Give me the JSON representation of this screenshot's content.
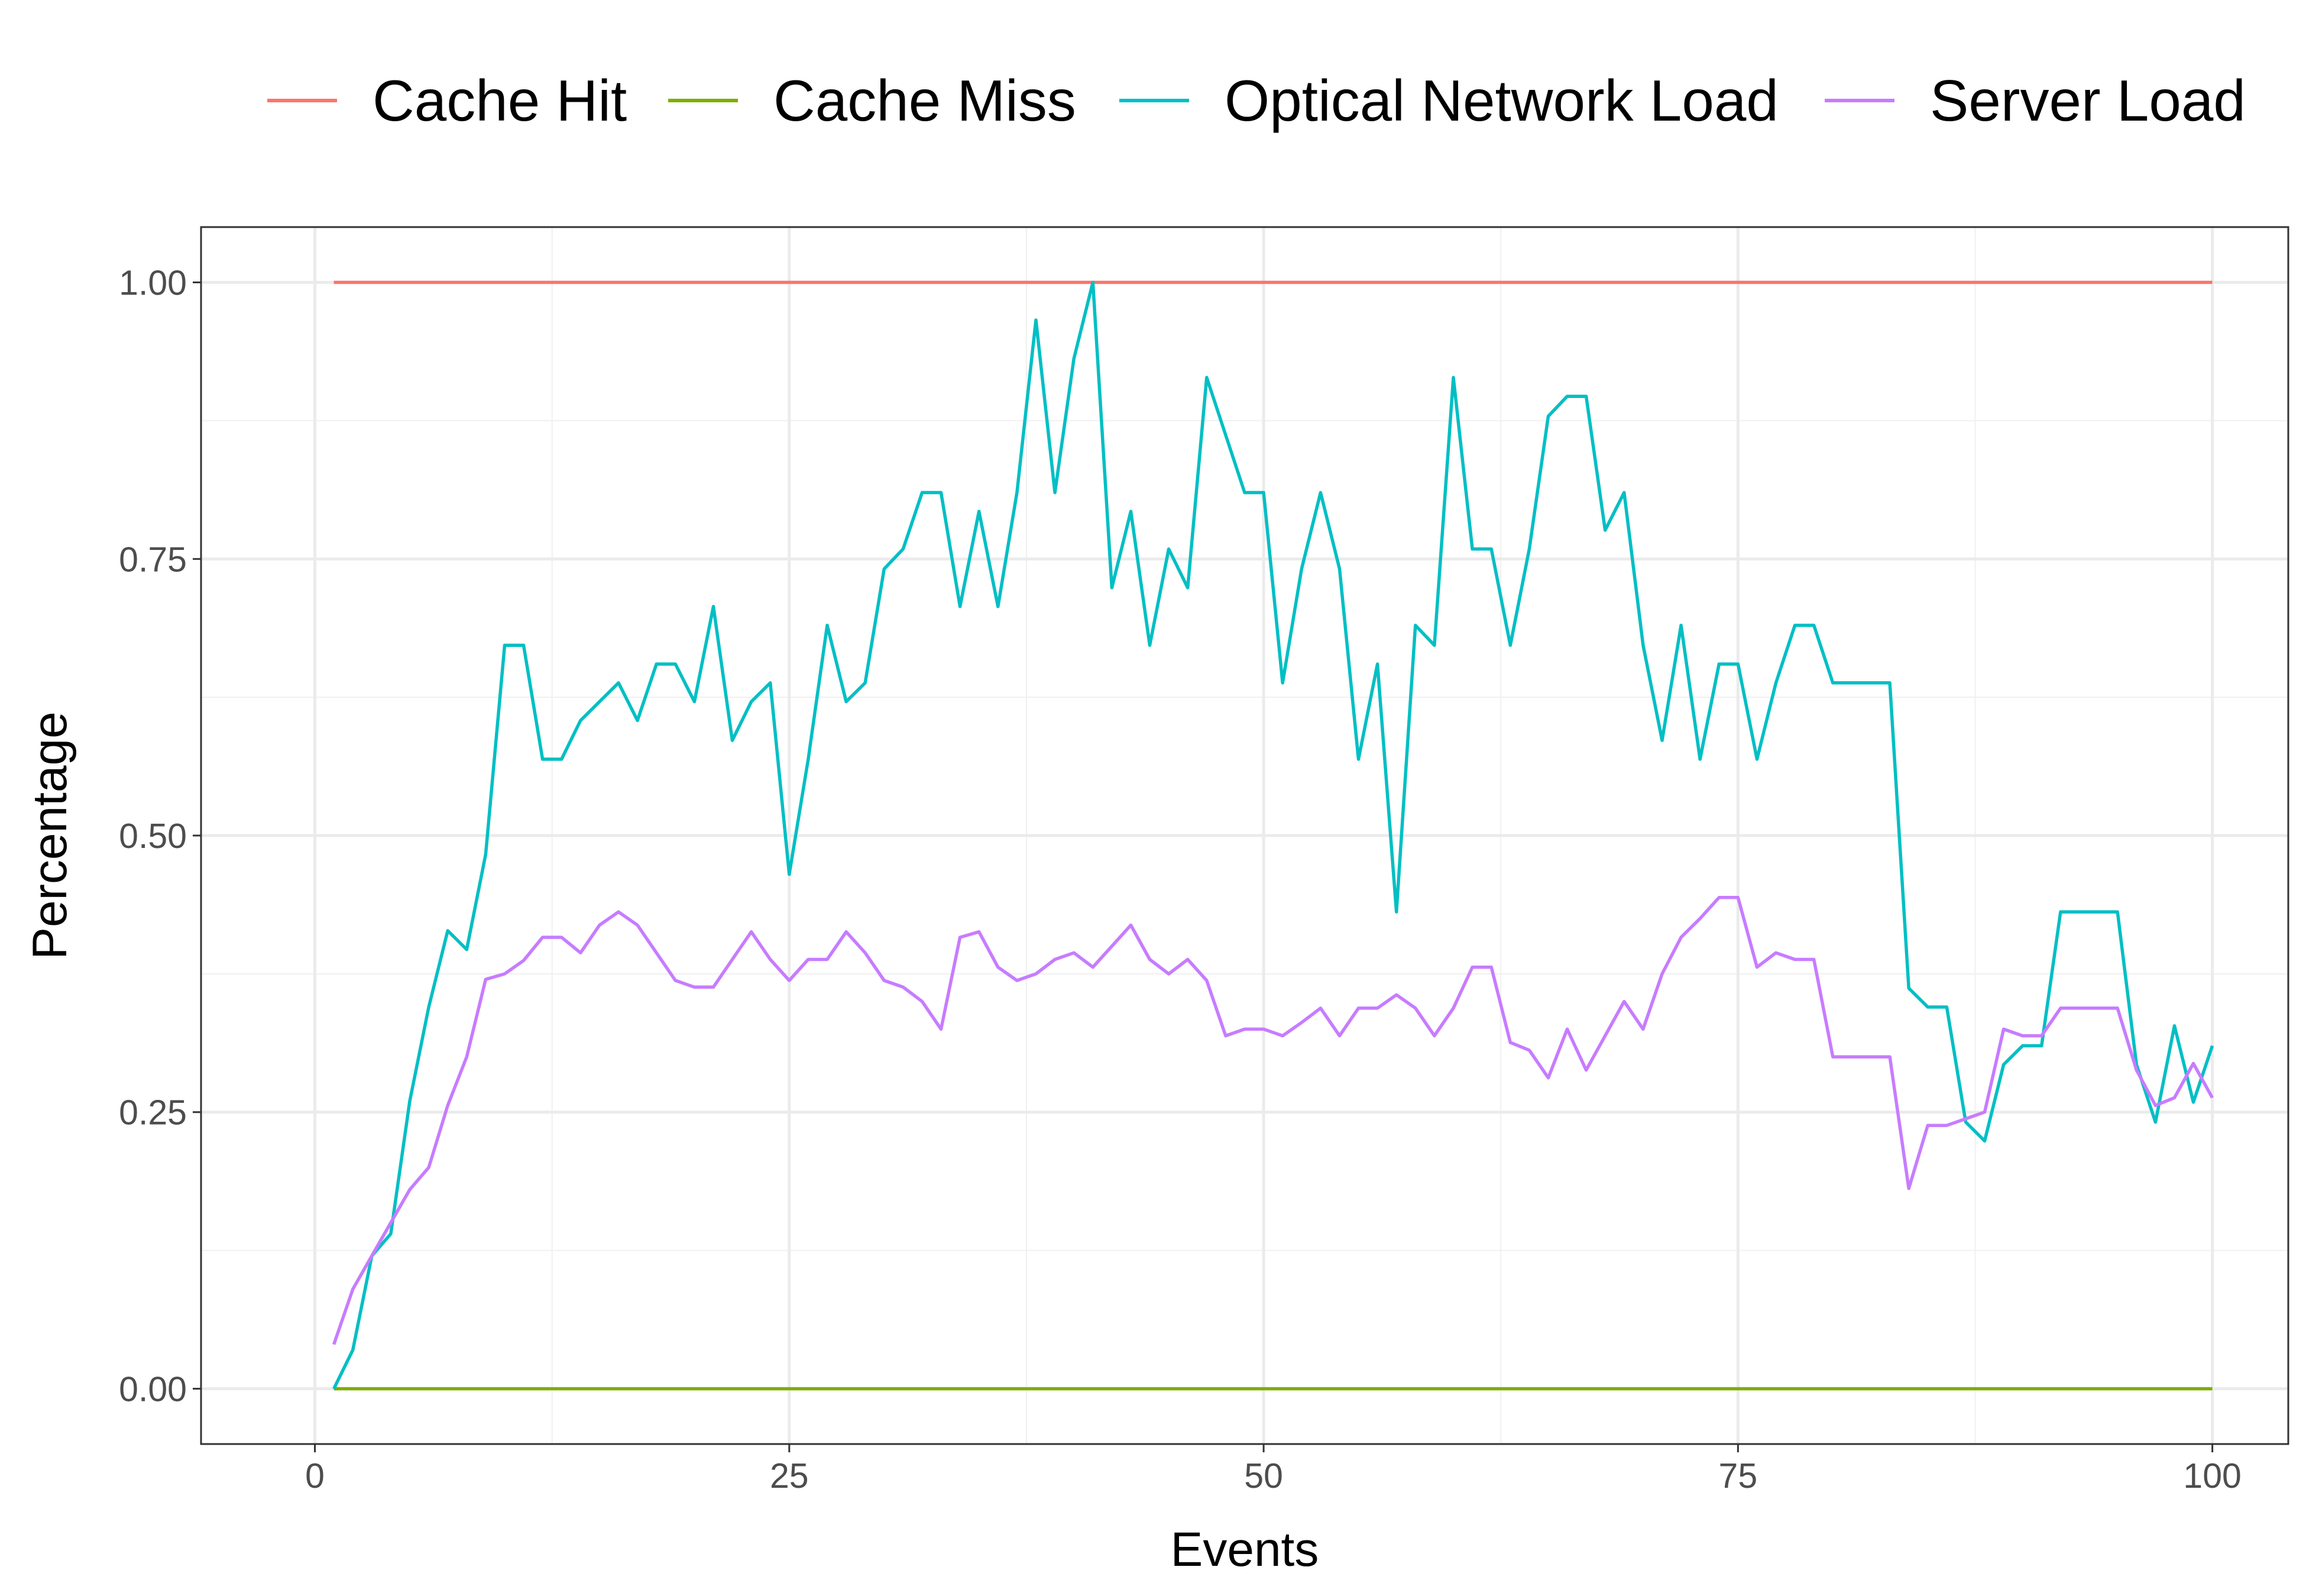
{
  "chart_data": {
    "type": "line",
    "title": "",
    "xlabel": "Events",
    "ylabel": "Percentage",
    "xlim": [
      -6,
      104
    ],
    "ylim": [
      -0.05,
      1.05
    ],
    "x_ticks": [
      0,
      25,
      50,
      75,
      100
    ],
    "x_tick_labels": [
      "0",
      "25",
      "50",
      "75",
      "100"
    ],
    "y_ticks": [
      0,
      0.25,
      0.5,
      0.75,
      1.0
    ],
    "y_tick_labels": [
      "0.00",
      "0.25",
      "0.50",
      "0.75",
      "1.00"
    ],
    "grid": true,
    "legend_position": "top",
    "x": [
      1,
      2,
      3,
      4,
      5,
      6,
      7,
      8,
      9,
      10,
      11,
      12,
      13,
      14,
      15,
      16,
      17,
      18,
      19,
      20,
      21,
      22,
      23,
      24,
      25,
      26,
      27,
      28,
      29,
      30,
      31,
      32,
      33,
      34,
      35,
      36,
      37,
      38,
      39,
      40,
      41,
      42,
      43,
      44,
      45,
      46,
      47,
      48,
      49,
      50,
      51,
      52,
      53,
      54,
      55,
      56,
      57,
      58,
      59,
      60,
      61,
      62,
      63,
      64,
      65,
      66,
      67,
      68,
      69,
      70,
      71,
      72,
      73,
      74,
      75,
      76,
      77,
      78,
      79,
      80,
      81,
      82,
      83,
      84,
      85,
      86,
      87,
      88,
      89,
      90,
      91,
      92,
      93,
      94,
      95,
      96,
      97,
      98,
      99,
      100
    ],
    "series": [
      {
        "name": "Cache Hit",
        "color": "#F8766D",
        "values": [
          1,
          1,
          1,
          1,
          1,
          1,
          1,
          1,
          1,
          1,
          1,
          1,
          1,
          1,
          1,
          1,
          1,
          1,
          1,
          1,
          1,
          1,
          1,
          1,
          1,
          1,
          1,
          1,
          1,
          1,
          1,
          1,
          1,
          1,
          1,
          1,
          1,
          1,
          1,
          1,
          1,
          1,
          1,
          1,
          1,
          1,
          1,
          1,
          1,
          1,
          1,
          1,
          1,
          1,
          1,
          1,
          1,
          1,
          1,
          1,
          1,
          1,
          1,
          1,
          1,
          1,
          1,
          1,
          1,
          1,
          1,
          1,
          1,
          1,
          1,
          1,
          1,
          1,
          1,
          1,
          1,
          1,
          1,
          1,
          1,
          1,
          1,
          1,
          1,
          1,
          1,
          1,
          1,
          1,
          1,
          1,
          1,
          1,
          1,
          1
        ]
      },
      {
        "name": "Cache Miss",
        "color": "#7CAE00",
        "values": [
          0,
          0,
          0,
          0,
          0,
          0,
          0,
          0,
          0,
          0,
          0,
          0,
          0,
          0,
          0,
          0,
          0,
          0,
          0,
          0,
          0,
          0,
          0,
          0,
          0,
          0,
          0,
          0,
          0,
          0,
          0,
          0,
          0,
          0,
          0,
          0,
          0,
          0,
          0,
          0,
          0,
          0,
          0,
          0,
          0,
          0,
          0,
          0,
          0,
          0,
          0,
          0,
          0,
          0,
          0,
          0,
          0,
          0,
          0,
          0,
          0,
          0,
          0,
          0,
          0,
          0,
          0,
          0,
          0,
          0,
          0,
          0,
          0,
          0,
          0,
          0,
          0,
          0,
          0,
          0,
          0,
          0,
          0,
          0,
          0,
          0,
          0,
          0,
          0,
          0,
          0,
          0,
          0,
          0,
          0,
          0,
          0,
          0,
          0,
          0
        ]
      },
      {
        "name": "Optical Network Load",
        "color": "#00BFC4",
        "values": [
          0.0,
          0.035,
          0.12,
          0.14,
          0.26,
          0.345,
          0.414,
          0.397,
          0.483,
          0.672,
          0.672,
          0.569,
          0.569,
          0.604,
          0.621,
          0.638,
          0.604,
          0.655,
          0.655,
          0.621,
          0.707,
          0.586,
          0.621,
          0.638,
          0.465,
          0.569,
          0.69,
          0.621,
          0.638,
          0.741,
          0.759,
          0.81,
          0.81,
          0.707,
          0.793,
          0.707,
          0.81,
          0.966,
          0.81,
          0.931,
          1.0,
          0.724,
          0.793,
          0.672,
          0.759,
          0.724,
          0.914,
          0.862,
          0.81,
          0.81,
          0.638,
          0.741,
          0.81,
          0.741,
          0.569,
          0.655,
          0.431,
          0.69,
          0.672,
          0.914,
          0.759,
          0.759,
          0.672,
          0.759,
          0.879,
          0.897,
          0.897,
          0.776,
          0.81,
          0.672,
          0.586,
          0.69,
          0.569,
          0.655,
          0.655,
          0.569,
          0.638,
          0.69,
          0.69,
          0.638,
          0.638,
          0.638,
          0.638,
          0.362,
          0.345,
          0.345,
          0.241,
          0.224,
          0.293,
          0.31,
          0.31,
          0.431,
          0.431,
          0.431,
          0.431,
          0.293,
          0.241,
          0.328,
          0.259,
          0.31
        ]
      },
      {
        "name": "Server Load",
        "color": "#C77CFF",
        "values": [
          0.04,
          0.09,
          0.12,
          0.15,
          0.18,
          0.2,
          0.256,
          0.3,
          0.37,
          0.375,
          0.387,
          0.408,
          0.408,
          0.394,
          0.419,
          0.431,
          0.419,
          0.394,
          0.369,
          0.363,
          0.363,
          0.388,
          0.413,
          0.388,
          0.369,
          0.388,
          0.388,
          0.413,
          0.394,
          0.369,
          0.363,
          0.35,
          0.325,
          0.408,
          0.413,
          0.381,
          0.369,
          0.375,
          0.388,
          0.394,
          0.381,
          0.4,
          0.419,
          0.388,
          0.375,
          0.388,
          0.369,
          0.319,
          0.325,
          0.325,
          0.319,
          0.331,
          0.344,
          0.319,
          0.344,
          0.344,
          0.356,
          0.344,
          0.319,
          0.344,
          0.381,
          0.381,
          0.313,
          0.306,
          0.281,
          0.325,
          0.288,
          0.319,
          0.35,
          0.325,
          0.375,
          0.408,
          0.425,
          0.444,
          0.444,
          0.381,
          0.394,
          0.388,
          0.388,
          0.3,
          0.3,
          0.3,
          0.3,
          0.181,
          0.238,
          0.238,
          0.244,
          0.25,
          0.325,
          0.319,
          0.319,
          0.344,
          0.344,
          0.344,
          0.344,
          0.288,
          0.256,
          0.263,
          0.294,
          0.263
        ]
      }
    ]
  }
}
